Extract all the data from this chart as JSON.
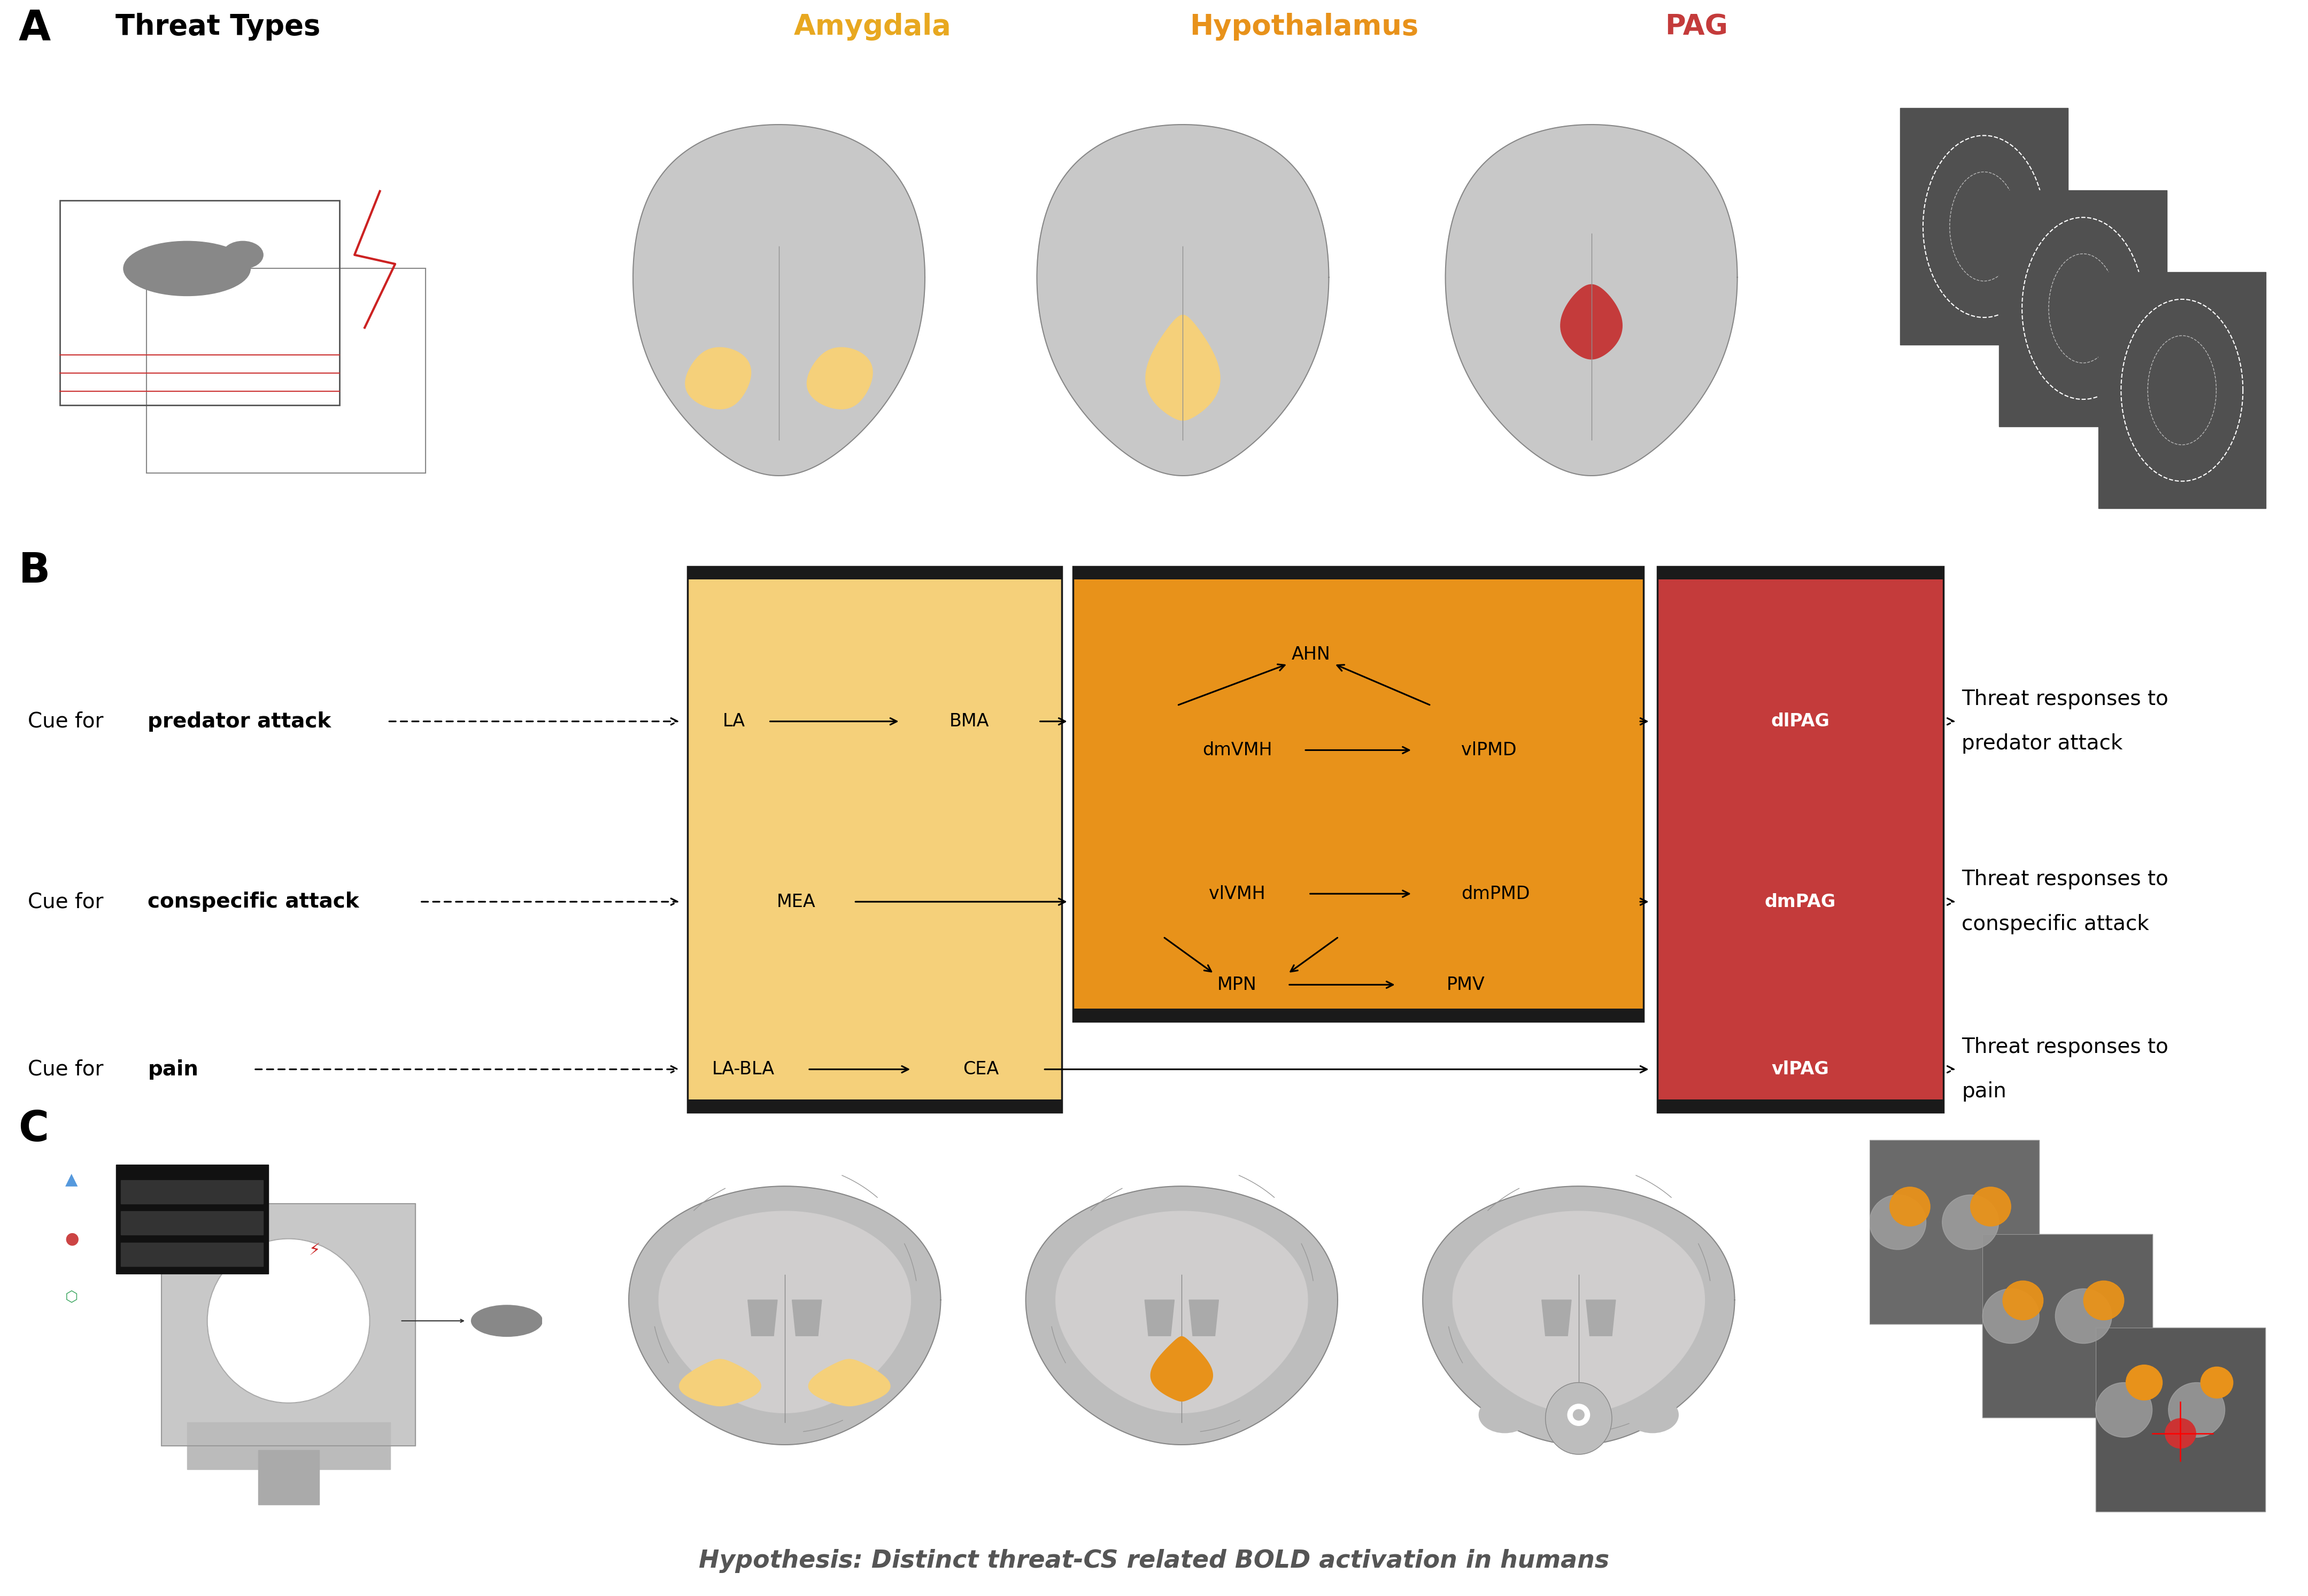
{
  "header_amygdala": "Amygdala",
  "header_hypothalamus": "Hypothalamus",
  "header_PAG": "PAG",
  "col_amyg_light": "#F5D07A",
  "col_amyg_dark": "#E8A820",
  "col_hyp": "#E8921A",
  "col_pag": "#C43B3B",
  "col_border": "#1A1A1A",
  "col_text": "#1A1A1A",
  "cue_predator_normal": "Cue for ",
  "cue_predator_bold": "predator attack",
  "cue_conspecific_normal": "Cue for ",
  "cue_conspecific_bold": "conspecific attack",
  "cue_pain_normal": "Cue for ",
  "cue_pain_bold": "pain",
  "resp_predator_l1": "Threat responses to",
  "resp_predator_l2": "predator attack",
  "resp_conspecific_l1": "Threat responses to",
  "resp_conspecific_l2": "conspecific attack",
  "resp_pain_l1": "Threat responses to",
  "resp_pain_l2": "pain",
  "hypothesis_text": "Hypothesis: Distinct threat-CS related BOLD activation in humans"
}
